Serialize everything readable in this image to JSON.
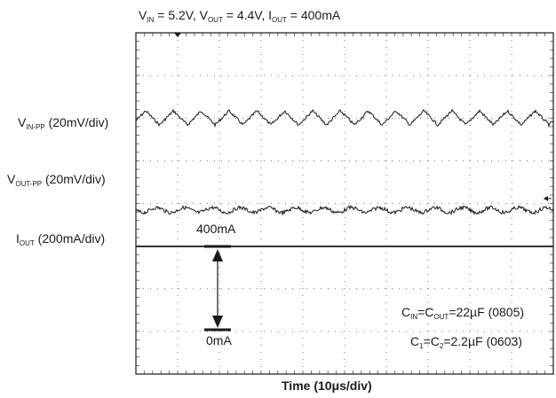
{
  "chart_data": {
    "type": "oscilloscope",
    "title": {
      "vin": "5.2V",
      "vout": "4.4V",
      "iout": "400mA"
    },
    "xlabel": "Time (10μs/div)",
    "x_divisions": 10,
    "y_divisions": 8,
    "grid": "dotted",
    "channels": [
      {
        "label": "IN-PP",
        "scale": "(20mV/div)",
        "waveform": "triangle ripple",
        "cycles": 15
      },
      {
        "label": "OUT-PP",
        "scale": "(20mV/div)",
        "waveform": "noisy ripple",
        "cycles": 15
      },
      {
        "label": "OUT",
        "scale": "(200mA/div)",
        "waveform": "dc"
      }
    ],
    "annotations": {
      "current_high": "400mA",
      "current_low": "0mA"
    },
    "notes": {
      "caps1": "=22µF (0805)",
      "caps2": "=2.2µF (0603)"
    }
  }
}
